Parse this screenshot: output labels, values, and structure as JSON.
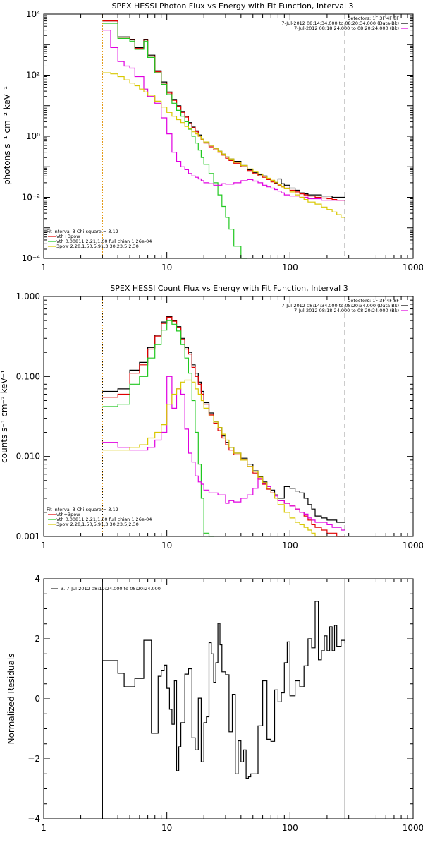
{
  "colors": {
    "black": "#000000",
    "red": "#e00000",
    "green": "#20c820",
    "magenta": "#e000e0",
    "yellow": "#d8c800",
    "orange": "#e09000"
  },
  "chart_data": [
    {
      "type": "line",
      "title": "SPEX HESSI Photon Flux vs Energy with Fit Function, Interval 3",
      "ylabel": "photons s⁻¹ cm⁻² keV⁻¹",
      "xlabel": "",
      "xscale": "log",
      "yscale": "log",
      "xlim": [
        1,
        1000
      ],
      "ylim": [
        0.0001,
        10000
      ],
      "x_ticks": [
        "1",
        "10",
        "100",
        "1000"
      ],
      "y_ticks": [
        {
          "v": 0.0001,
          "label": "10⁻⁴"
        },
        {
          "v": 0.01,
          "label": "10⁻²"
        },
        {
          "v": 1,
          "label": "10⁰"
        },
        {
          "v": 100,
          "label": "10²"
        },
        {
          "v": 10000,
          "label": "10⁴"
        }
      ],
      "legend_top": [
        "Detectors: 1F 3F 4F 8F",
        "7-Jul-2012 08:14:34.000 to 08:20:34.000 (Data-Bk)",
        "7-Jul-2012 08:18:24.000 to 08:20:24.000 (Bk)"
      ],
      "legend_bottom": [
        "Fit Interval 3   Chi-square = 3.12",
        "vth+3pow",
        "vth 0.00811,2.21,1.00  full chian 1.26e-04",
        "3pow 2.28,1.50,5.91,3.30,23.5,2.30"
      ],
      "legend_bottom_colors": [
        "black",
        "red",
        "green",
        "yellow"
      ],
      "legend_top_colors": [
        "black",
        "black",
        "magenta"
      ],
      "edges": [
        3,
        3.5,
        4,
        4.5,
        5,
        5.5,
        6,
        6.5,
        7,
        8,
        9,
        10,
        11,
        12,
        13,
        14,
        15,
        16,
        17,
        18,
        19,
        20,
        22,
        24,
        26,
        28,
        30,
        32,
        35,
        40,
        45,
        50,
        55,
        60,
        65,
        70,
        75,
        80,
        85,
        90,
        100,
        110,
        120,
        130,
        140,
        160,
        180,
        200,
        220,
        240,
        260,
        280
      ],
      "series": [
        {
          "color": "black",
          "values": [
            6000,
            6000,
            1800,
            1800,
            1500,
            800,
            800,
            1500,
            450,
            140,
            60,
            28,
            16,
            10,
            6.5,
            4.5,
            2.8,
            2,
            1.5,
            1.1,
            0.8,
            0.65,
            0.5,
            0.4,
            0.32,
            0.26,
            0.21,
            0.18,
            0.15,
            0.11,
            0.08,
            0.065,
            0.055,
            0.05,
            0.04,
            0.035,
            0.03,
            0.04,
            0.028,
            0.025,
            0.02,
            0.017,
            0.014,
            0.013,
            0.012,
            0.012,
            0.011,
            0.011,
            0.01,
            0.01,
            0.01
          ]
        },
        {
          "color": "red",
          "values": [
            6000,
            6000,
            1750,
            1750,
            1450,
            750,
            750,
            1450,
            420,
            130,
            55,
            26,
            15,
            9.5,
            6,
            4.2,
            2.6,
            1.9,
            1.4,
            1,
            0.75,
            0.6,
            0.45,
            0.36,
            0.3,
            0.24,
            0.19,
            0.16,
            0.13,
            0.1,
            0.075,
            0.06,
            0.05,
            0.045,
            0.038,
            0.032,
            0.028,
            0.025,
            0.022,
            0.02,
            0.017,
            0.015,
            0.013,
            0.012,
            0.011,
            0.01,
            0.0095,
            0.009,
            0.0085,
            0.008,
            0.008
          ]
        },
        {
          "color": "green",
          "values": [
            5000,
            5000,
            1600,
            1600,
            1300,
            700,
            700,
            1300,
            380,
            120,
            50,
            23,
            12,
            7,
            4.5,
            3,
            1.7,
            1,
            0.6,
            0.35,
            0.2,
            0.12,
            0.06,
            0.03,
            0.012,
            0.005,
            0.0022,
            0.0009,
            0.00025,
            5e-05
          ]
        },
        {
          "color": "magenta",
          "values": [
            3000,
            800,
            280,
            200,
            170,
            90,
            90,
            35,
            20,
            12,
            4,
            1.2,
            0.3,
            0.15,
            0.1,
            0.08,
            0.06,
            0.05,
            0.045,
            0.04,
            0.035,
            0.03,
            0.028,
            0.025,
            0.025,
            0.028,
            0.027,
            0.027,
            0.03,
            0.035,
            0.038,
            0.034,
            0.03,
            0.025,
            0.022,
            0.02,
            0.018,
            0.016,
            0.014,
            0.012,
            0.011,
            0.011,
            0.01,
            0.01,
            0.009,
            0.009,
            0.008,
            0.008,
            0.008,
            0.008,
            0.008
          ]
        },
        {
          "color": "yellow",
          "values": [
            120,
            110,
            90,
            70,
            55,
            45,
            35,
            28,
            22,
            14,
            9,
            6,
            4.5,
            3.5,
            2.8,
            2.1,
            1.8,
            1.4,
            1.2,
            1,
            0.8,
            0.65,
            0.5,
            0.4,
            0.32,
            0.26,
            0.21,
            0.18,
            0.14,
            0.11,
            0.085,
            0.07,
            0.058,
            0.049,
            0.042,
            0.036,
            0.031,
            0.026,
            0.022,
            0.019,
            0.015,
            0.012,
            0.01,
            0.0085,
            0.007,
            0.006,
            0.0048,
            0.004,
            0.0033,
            0.0027,
            0.0022
          ]
        }
      ],
      "vlines": [
        {
          "x": 3,
          "style": "orange"
        },
        {
          "x": 280,
          "style": "dashed"
        }
      ]
    },
    {
      "type": "line",
      "title": "SPEX HESSI Count Flux vs Energy with Fit Function, Interval 3",
      "ylabel": "counts s⁻¹ cm⁻² keV⁻¹",
      "xlabel": "",
      "xscale": "log",
      "yscale": "log",
      "xlim": [
        1,
        1000
      ],
      "ylim": [
        0.001,
        1
      ],
      "x_ticks": [
        "1",
        "10",
        "100",
        "1000"
      ],
      "y_ticks": [
        {
          "v": 0.001,
          "label": "0.001"
        },
        {
          "v": 0.01,
          "label": "0.010"
        },
        {
          "v": 0.1,
          "label": "0.100"
        },
        {
          "v": 1,
          "label": "1.000"
        }
      ],
      "legend_top": [
        "Detectors: 1F 3F 4F 8F",
        "7-Jul-2012 08:14:34.000 to 08:20:34.000 (Data-Bk)",
        "7-Jul-2012 08:18:24.000 to 08:20:24.000 (Bk)"
      ],
      "legend_bottom": [
        "Fit Interval 3   Chi-square = 3.12",
        "vth+3pow",
        "vth 0.00811,2.21,1.00  full chian 1.26e-04",
        "3pow 2.28,1.50,5.91,3.30,23.5,2.30"
      ],
      "legend_bottom_colors": [
        "black",
        "red",
        "green",
        "yellow"
      ],
      "legend_top_colors": [
        "black",
        "black",
        "magenta"
      ],
      "edges": [
        3,
        4,
        5,
        6,
        7,
        8,
        9,
        10,
        11,
        12,
        13,
        14,
        15,
        16,
        17,
        18,
        19,
        20,
        22,
        24,
        26,
        28,
        30,
        32,
        35,
        40,
        45,
        50,
        55,
        60,
        65,
        70,
        75,
        80,
        90,
        100,
        110,
        120,
        130,
        140,
        150,
        160,
        180,
        200,
        220,
        240,
        260,
        280
      ],
      "series": [
        {
          "color": "black",
          "values": [
            0.065,
            0.07,
            0.12,
            0.15,
            0.23,
            0.33,
            0.48,
            0.56,
            0.5,
            0.42,
            0.3,
            0.23,
            0.2,
            0.14,
            0.11,
            0.085,
            0.065,
            0.047,
            0.035,
            0.027,
            0.023,
            0.018,
            0.015,
            0.013,
            0.011,
            0.0095,
            0.008,
            0.0066,
            0.0056,
            0.0048,
            0.0042,
            0.0038,
            0.0033,
            0.003,
            0.0042,
            0.004,
            0.0037,
            0.0035,
            0.003,
            0.0025,
            0.0022,
            0.0018,
            0.0017,
            0.0016,
            0.0016,
            0.0015,
            0.0015
          ]
        },
        {
          "color": "red",
          "values": [
            0.055,
            0.06,
            0.11,
            0.14,
            0.22,
            0.32,
            0.46,
            0.55,
            0.49,
            0.41,
            0.29,
            0.22,
            0.19,
            0.13,
            0.1,
            0.08,
            0.06,
            0.045,
            0.033,
            0.026,
            0.021,
            0.017,
            0.014,
            0.012,
            0.0105,
            0.009,
            0.0075,
            0.0062,
            0.0052,
            0.0045,
            0.0039,
            0.0035,
            0.003,
            0.0028,
            0.0026,
            0.0024,
            0.0022,
            0.002,
            0.0018,
            0.0016,
            0.0014,
            0.0013,
            0.0012,
            0.0011,
            0.0011,
            0.001,
            0.001
          ]
        },
        {
          "color": "green",
          "values": [
            0.042,
            0.045,
            0.08,
            0.1,
            0.17,
            0.25,
            0.38,
            0.5,
            0.45,
            0.37,
            0.25,
            0.17,
            0.11,
            0.05,
            0.02,
            0.008,
            0.003,
            0.0011,
            0.0003
          ]
        },
        {
          "color": "magenta",
          "values": [
            0.015,
            0.013,
            0.012,
            0.012,
            0.013,
            0.016,
            0.02,
            0.1,
            0.04,
            0.07,
            0.06,
            0.022,
            0.011,
            0.0085,
            0.0057,
            0.0048,
            0.0045,
            0.0038,
            0.0035,
            0.0035,
            0.0033,
            0.0033,
            0.0026,
            0.0028,
            0.0027,
            0.003,
            0.0033,
            0.004,
            0.0053,
            0.0046,
            0.0042,
            0.0035,
            0.0032,
            0.0028,
            0.0026,
            0.0024,
            0.0022,
            0.002,
            0.0019,
            0.0017,
            0.0016,
            0.0015,
            0.0015,
            0.0014,
            0.0013,
            0.0013,
            0.0012
          ]
        },
        {
          "color": "yellow",
          "values": [
            0.012,
            0.012,
            0.013,
            0.014,
            0.017,
            0.02,
            0.025,
            0.045,
            0.06,
            0.07,
            0.085,
            0.09,
            0.09,
            0.085,
            0.07,
            0.06,
            0.05,
            0.04,
            0.032,
            0.027,
            0.023,
            0.019,
            0.016,
            0.013,
            0.011,
            0.009,
            0.0075,
            0.0065,
            0.0055,
            0.0047,
            0.004,
            0.0035,
            0.003,
            0.0025,
            0.002,
            0.0017,
            0.0015,
            0.0014,
            0.0013,
            0.0012,
            0.0011,
            0.001,
            0.0009
          ]
        }
      ],
      "vlines": [
        {
          "x": 3,
          "style": "orange"
        },
        {
          "x": 3,
          "style": "dotted"
        },
        {
          "x": 280,
          "style": "dashed"
        }
      ]
    },
    {
      "type": "line",
      "title": "",
      "ylabel": "Normalized Residuals",
      "xlabel": "",
      "xscale": "log",
      "yscale": "linear",
      "xlim": [
        1,
        1000
      ],
      "ylim": [
        -4,
        4
      ],
      "x_ticks": [
        "1",
        "10",
        "100",
        "1000"
      ],
      "y_ticks": [
        {
          "v": -4,
          "label": "−4"
        },
        {
          "v": -2,
          "label": "−2"
        },
        {
          "v": 0,
          "label": "0"
        },
        {
          "v": 2,
          "label": "2"
        },
        {
          "v": 4,
          "label": "4"
        }
      ],
      "legend_top": [
        "3.  7-Jul-2012 08:19:24.000 to 08:20:24.000"
      ],
      "legend_top_colors": [
        "black"
      ],
      "edges": [
        3,
        3.5,
        4,
        4.5,
        5,
        5.5,
        6,
        6.5,
        7,
        7.5,
        8,
        8.5,
        9,
        9.5,
        10,
        10.5,
        11,
        11.5,
        12,
        12.5,
        13,
        14,
        15,
        16,
        17,
        18,
        19,
        20,
        21,
        22,
        23,
        24,
        25,
        26,
        27,
        28,
        30,
        32,
        34,
        36,
        38,
        40,
        42,
        44,
        46,
        48,
        50,
        55,
        60,
        65,
        70,
        75,
        80,
        85,
        90,
        95,
        100,
        110,
        120,
        130,
        140,
        150,
        160,
        170,
        180,
        190,
        200,
        210,
        220,
        230,
        240,
        260,
        280
      ],
      "series": [
        {
          "color": "black",
          "values": [
            1.27,
            1.27,
            0.85,
            0.4,
            0.4,
            0.68,
            0.68,
            1.95,
            1.95,
            -1.15,
            -1.15,
            0.75,
            0.95,
            1.12,
            0.35,
            -0.35,
            -0.85,
            0.6,
            -2.4,
            -1.6,
            -0.8,
            0.82,
            1.0,
            -1.3,
            -1.7,
            0.02,
            -2.1,
            -0.8,
            -0.6,
            1.87,
            1.5,
            0.55,
            1.2,
            2.52,
            1.8,
            0.9,
            0.8,
            -1.1,
            0.15,
            -2.5,
            -1.4,
            -2.1,
            -1.7,
            -2.65,
            -2.6,
            -2.5,
            -2.5,
            -0.9,
            0.6,
            -1.35,
            -1.42,
            0.3,
            -0.1,
            0.2,
            1.2,
            1.9,
            0.1,
            0.6,
            0.4,
            1.1,
            2.0,
            1.7,
            3.25,
            1.3,
            1.6,
            2.1,
            1.6,
            2.4,
            1.6,
            2.45,
            1.75,
            1.95,
            1.85
          ]
        }
      ],
      "vlines": [
        {
          "x": 3,
          "style": "solid"
        },
        {
          "x": 280,
          "style": "solid"
        }
      ]
    }
  ]
}
